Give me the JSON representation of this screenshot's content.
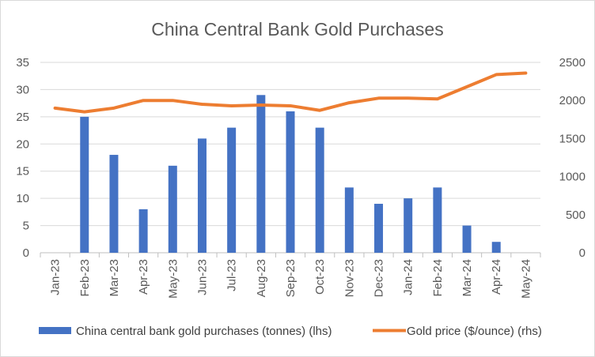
{
  "chart_data": {
    "type": "bar",
    "title": "China Central Bank Gold Purchases",
    "categories": [
      "Jan-23",
      "Feb-23",
      "Mar-23",
      "Apr-23",
      "May-23",
      "Jun-23",
      "Jul-23",
      "Aug-23",
      "Sep-23",
      "Oct-23",
      "Nov-23",
      "Dec-23",
      "Jan-24",
      "Feb-24",
      "Mar-24",
      "Apr-24",
      "May-24"
    ],
    "series": [
      {
        "name": "China central bank gold purchases (tonnes) (lhs)",
        "type": "bar",
        "axis": "left",
        "color": "#4472C4",
        "values": [
          0,
          25,
          18,
          8,
          16,
          21,
          23,
          29,
          26,
          23,
          12,
          9,
          10,
          12,
          5,
          2,
          0
        ]
      },
      {
        "name": "Gold price ($/ounce) (rhs)",
        "type": "line",
        "axis": "right",
        "color": "#ED7D31",
        "values": [
          1900,
          1850,
          1900,
          2000,
          2000,
          1950,
          1930,
          1940,
          1930,
          1870,
          1970,
          2030,
          2030,
          2020,
          2180,
          2340,
          2360
        ]
      }
    ],
    "left_axis": {
      "min": 0,
      "max": 35,
      "ticks": [
        "0",
        "5",
        "10",
        "15",
        "20",
        "25",
        "30",
        "35"
      ]
    },
    "right_axis": {
      "min": 0,
      "max": 2500,
      "ticks": [
        "0",
        "500",
        "1000",
        "1500",
        "2000",
        "2500"
      ]
    },
    "grid": true,
    "legend_position": "bottom"
  }
}
